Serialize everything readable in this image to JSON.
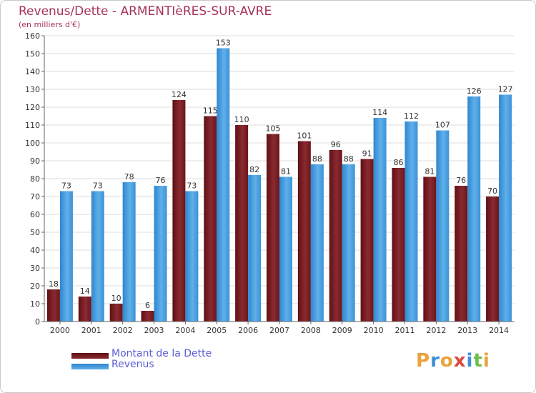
{
  "title": "Revenus/Dette - ARMENTIèRES-SUR-AVRE",
  "subtitle": "(en milliers d'€)",
  "logo": {
    "letters": [
      "P",
      "r",
      "o",
      "x",
      "i",
      "t",
      "i"
    ],
    "colors": [
      "#e8a33a",
      "#3f8fd6",
      "#e8a33a",
      "#d94a3c",
      "#3f8fd6",
      "#6dbf4a",
      "#e8a33a"
    ]
  },
  "chart_data": {
    "type": "bar",
    "categories": [
      "2000",
      "2001",
      "2002",
      "2003",
      "2004",
      "2005",
      "2006",
      "2007",
      "2008",
      "2009",
      "2010",
      "2011",
      "2012",
      "2013",
      "2014"
    ],
    "series": [
      {
        "name": "Montant de la Dette",
        "color": "#7a1c22",
        "values": [
          18,
          14,
          10,
          6,
          124,
          115,
          110,
          105,
          101,
          96,
          91,
          86,
          81,
          76,
          70
        ]
      },
      {
        "name": "Revenus",
        "color": "#3b95dc",
        "values": [
          73,
          73,
          78,
          76,
          73,
          153,
          82,
          81,
          88,
          88,
          114,
          112,
          107,
          126,
          127
        ]
      }
    ],
    "ylim": [
      0,
      160
    ],
    "yticks": [
      0,
      10,
      20,
      30,
      40,
      50,
      60,
      70,
      80,
      90,
      100,
      110,
      120,
      130,
      140,
      150,
      160
    ],
    "grid": true,
    "legend_position": "bottom-left"
  }
}
